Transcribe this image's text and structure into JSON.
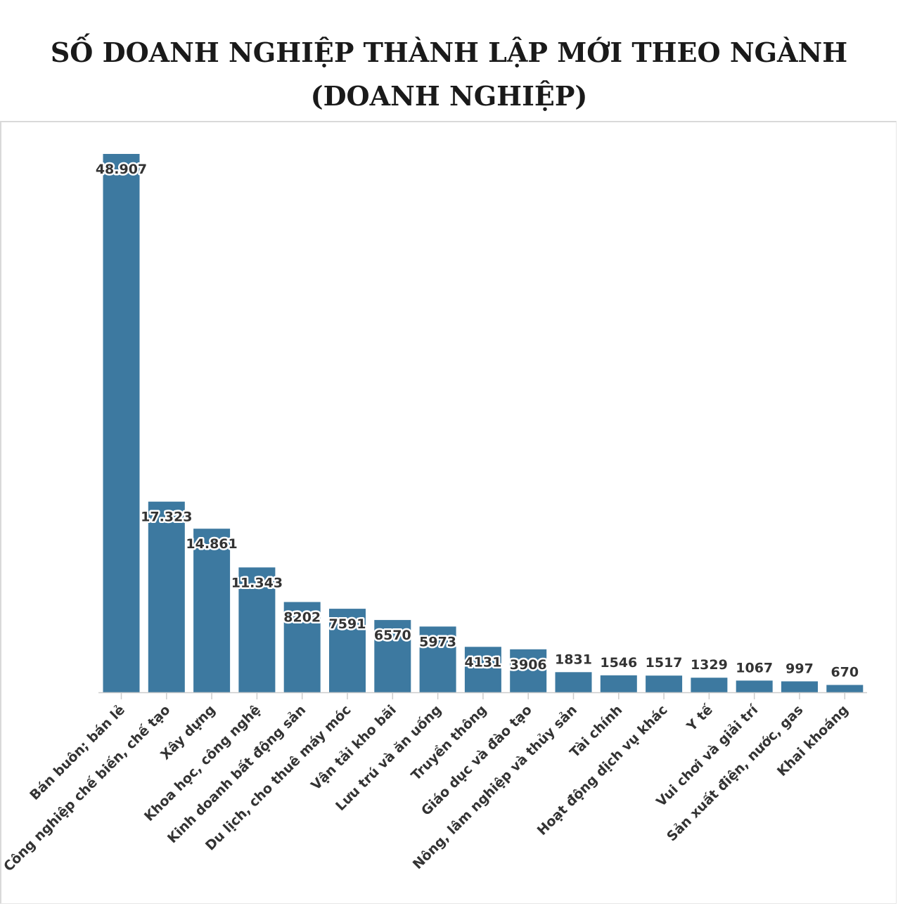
{
  "title": "SỐ DOANH NGHIỆP THÀNH LẬP MỚI THEO NGÀNH (DOANH NGHIỆP)",
  "colors": {
    "bar": "#3d79a0",
    "axis": "#cccccc",
    "text": "#333333"
  },
  "chart_data": {
    "type": "bar",
    "title": "SỐ DOANH NGHIỆP THÀNH LẬP MỚI THEO NGÀNH (DOANH NGHIỆP)",
    "xlabel": "",
    "ylabel": "",
    "ylim": [
      0,
      50000
    ],
    "grid": false,
    "legend": "none",
    "categories": [
      "Bán buôn; bán lẻ",
      "Công nghiệp chế biến, chế tạo",
      "Xây dựng",
      "Khoa học, công nghệ",
      "Kinh doanh bất động sản",
      "Du lịch, cho thuê máy móc",
      "Vận tải kho bãi",
      "Lưu trú và ăn uống",
      "Truyền thông",
      "Giáo dục và đào tạo",
      "Nông, lâm nghiệp và thủy sản",
      "Tài chính",
      "Hoạt động dịch vụ khác",
      "Y tế",
      "Vui chơi và giải trí",
      "Sản xuất điện, nước, gas",
      "Khai khoáng"
    ],
    "values": [
      48907,
      17323,
      14861,
      11343,
      8202,
      7591,
      6570,
      5973,
      4131,
      3906,
      1831,
      1546,
      1517,
      1329,
      1067,
      997,
      670
    ],
    "value_labels": [
      "48.907",
      "17.323",
      "14.861",
      "11.343",
      "8202",
      "7591",
      "6570",
      "5973",
      "4131",
      "3906",
      "1831",
      "1546",
      "1517",
      "1329",
      "1067",
      "997",
      "670"
    ]
  }
}
